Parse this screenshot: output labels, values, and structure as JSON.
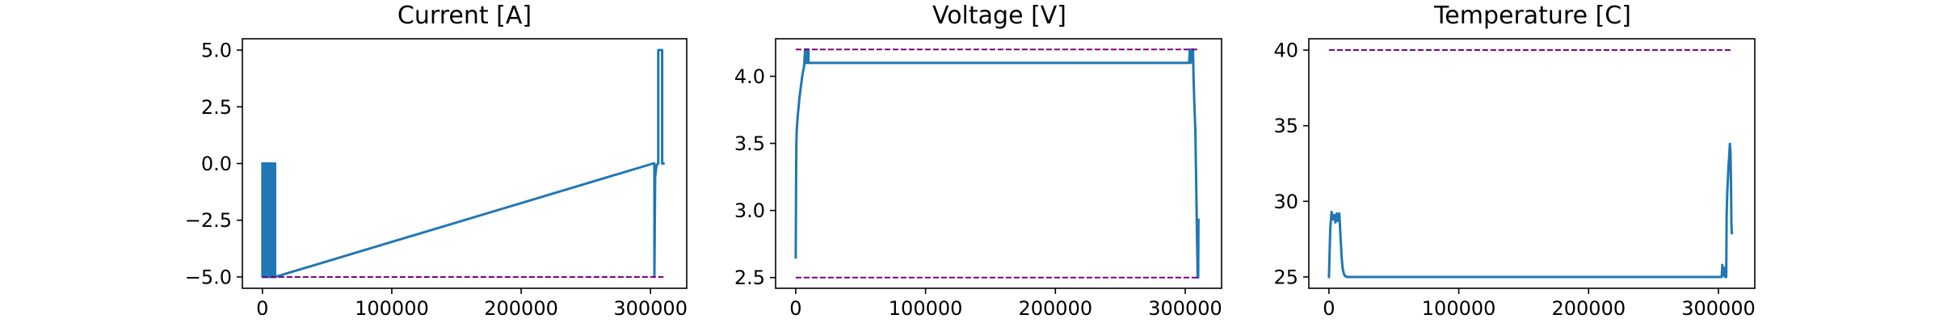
{
  "chart_data": [
    {
      "type": "line",
      "title": "Current [A]",
      "xlabel": "",
      "ylabel": "",
      "xlim": [
        -15500,
        328000
      ],
      "ylim": [
        -5.5,
        5.5
      ],
      "xticks": [
        0,
        100000,
        200000,
        300000
      ],
      "xtick_labels": [
        "0",
        "100000",
        "200000",
        "300000"
      ],
      "yticks": [
        -5.0,
        -2.5,
        0.0,
        2.5,
        5.0
      ],
      "ytick_labels": [
        "−5.0",
        "−2.5",
        "0.0",
        "2.5",
        "5.0"
      ],
      "grid": false,
      "limit_lines": [
        {
          "y": -5.0,
          "color": "#800080",
          "style": "dashed"
        }
      ],
      "series": [
        {
          "color": "#1f77b4",
          "x": [
            0,
            0,
            400,
            400,
            900,
            900,
            1400,
            1400,
            1900,
            1900,
            2400,
            2400,
            2900,
            2900,
            3400,
            3400,
            3900,
            3900,
            4400,
            4400,
            4900,
            4900,
            5400,
            5400,
            5900,
            5900,
            6400,
            6400,
            6900,
            6900,
            7400,
            7400,
            7900,
            7900,
            8400,
            8400,
            8900,
            8900,
            9400,
            9400,
            9800,
            9800,
            302000,
            303000,
            303000,
            303600,
            304600,
            305600,
            306000,
            306000,
            309000,
            309000,
            310000
          ],
          "y": [
            0.0,
            -5.0,
            -5.0,
            0.0,
            0.0,
            -5.0,
            -5.0,
            0.0,
            0.0,
            -5.0,
            -5.0,
            0.0,
            0.0,
            -5.0,
            -5.0,
            0.0,
            0.0,
            -5.0,
            -5.0,
            0.0,
            0.0,
            -5.0,
            -5.0,
            0.0,
            0.0,
            -5.0,
            -5.0,
            0.0,
            0.0,
            -5.0,
            -5.0,
            0.0,
            0.0,
            -5.0,
            -5.0,
            0.0,
            0.0,
            -5.0,
            -5.0,
            0.0,
            0.0,
            -5.0,
            0.0,
            0.0,
            -5.0,
            -0.6,
            -0.1,
            0.0,
            0.0,
            5.0,
            5.0,
            0.0,
            0.0
          ]
        }
      ]
    },
    {
      "type": "line",
      "title": "Voltage [V]",
      "xlabel": "",
      "ylabel": "",
      "xlim": [
        -15500,
        328000
      ],
      "ylim": [
        2.42,
        4.28
      ],
      "xticks": [
        0,
        100000,
        200000,
        300000
      ],
      "xtick_labels": [
        "0",
        "100000",
        "200000",
        "300000"
      ],
      "yticks": [
        2.5,
        3.0,
        3.5,
        4.0
      ],
      "ytick_labels": [
        "2.5",
        "3.0",
        "3.5",
        "4.0"
      ],
      "grid": false,
      "limit_lines": [
        {
          "y": 4.2,
          "color": "#800080",
          "style": "dashed"
        },
        {
          "y": 2.5,
          "color": "#800080",
          "style": "dashed"
        }
      ],
      "series": [
        {
          "color": "#1f77b4",
          "x": [
            0,
            300,
            500,
            800,
            1500,
            3000,
            5000,
            6500,
            7200,
            7500,
            8000,
            8400,
            9000,
            9400,
            9800,
            9800,
            302000,
            303000,
            303600,
            304200,
            305000,
            306000,
            306400,
            307000,
            307800,
            308300,
            309000,
            309600,
            310000,
            310200
          ],
          "y": [
            2.65,
            3.25,
            3.5,
            3.6,
            3.7,
            3.85,
            4.0,
            4.08,
            4.2,
            4.1,
            4.2,
            4.1,
            4.2,
            4.1,
            4.2,
            4.1,
            4.1,
            4.1,
            4.2,
            4.1,
            4.2,
            4.2,
            4.0,
            3.8,
            3.6,
            3.3,
            2.85,
            2.5,
            2.5,
            2.93
          ]
        }
      ]
    },
    {
      "type": "line",
      "title": "Temperature [C]",
      "xlabel": "",
      "ylabel": "",
      "xlim": [
        -15500,
        328000
      ],
      "ylim": [
        24.25,
        40.75
      ],
      "xticks": [
        0,
        100000,
        200000,
        300000
      ],
      "xtick_labels": [
        "0",
        "100000",
        "200000",
        "300000"
      ],
      "yticks": [
        25,
        30,
        35,
        40
      ],
      "ytick_labels": [
        "25",
        "30",
        "35",
        "40"
      ],
      "grid": false,
      "limit_lines": [
        {
          "y": 40.0,
          "color": "#800080",
          "style": "dashed"
        }
      ],
      "series": [
        {
          "color": "#1f77b4",
          "x": [
            0,
            1000,
            2000,
            3000,
            4000,
            5000,
            6000,
            7000,
            8000,
            9000,
            9800,
            10500,
            11500,
            12500,
            14000,
            16000,
            20000,
            100000,
            200000,
            302500,
            303000,
            303800,
            304400,
            305200,
            306000,
            306300,
            306800,
            307300,
            307800,
            308300,
            308800,
            309300,
            309700,
            310000,
            310300
          ],
          "y": [
            25.0,
            28.2,
            29.3,
            28.8,
            29.1,
            28.6,
            29.2,
            28.7,
            29.2,
            27.5,
            26.3,
            25.6,
            25.2,
            25.05,
            25.0,
            25.0,
            25.0,
            25.0,
            25.0,
            25.0,
            25.8,
            25.1,
            25.6,
            25.0,
            25.0,
            29.0,
            30.6,
            31.5,
            32.4,
            33.0,
            33.8,
            33.2,
            31.0,
            28.5,
            27.9
          ]
        }
      ]
    }
  ]
}
